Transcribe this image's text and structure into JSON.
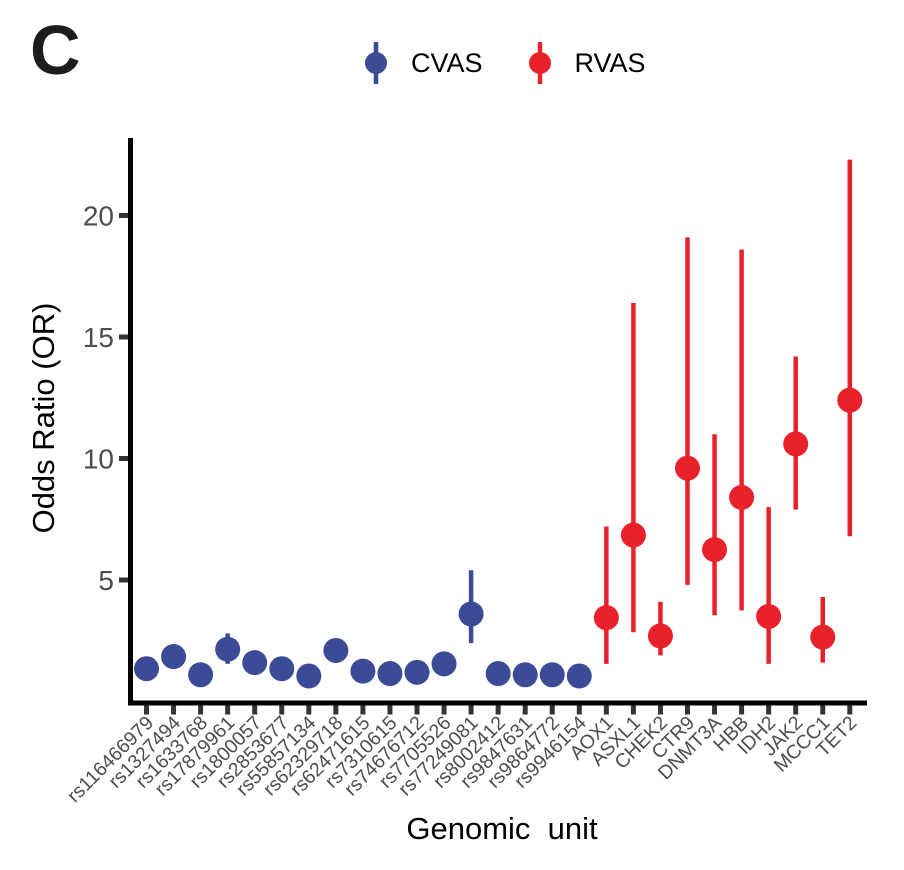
{
  "panel": {
    "label": "C"
  },
  "legend": {
    "items": [
      {
        "label": "CVAS",
        "color": "#3B4B96"
      },
      {
        "label": "RVAS",
        "color": "#E8212B"
      }
    ]
  },
  "chart_data": {
    "type": "scatter",
    "subtype": "pointrange",
    "title": "",
    "xlabel": "Genomic  unit",
    "ylabel": "Odds Ratio (OR)",
    "ylim": [
      0,
      23.3
    ],
    "yticks": [
      5,
      10,
      15,
      20
    ],
    "grid": false,
    "legend_position": "top-center",
    "axis_color": "#000000",
    "tick_color": "#333333",
    "tick_label_color": "#4d4d4d",
    "categories": [
      "rs116466979",
      "rs1327494",
      "rs1633768",
      "rs17879961",
      "rs1800057",
      "rs2853677",
      "rs55857134",
      "rs62329718",
      "rs62471615",
      "rs7310615",
      "rs74676712",
      "rs7705526",
      "rs77249081",
      "rs8002412",
      "rs9847631",
      "rs9864772",
      "rs9946154",
      "AOX1",
      "ASXL1",
      "CHEK2",
      "CTR9",
      "DNMT3A",
      "HBB",
      "IDH2",
      "JAK2",
      "MCCC1",
      "TET2"
    ],
    "series": [
      {
        "name": "CVAS",
        "color": "#3B4B96",
        "points": [
          {
            "category": "rs116466979",
            "or": 1.35,
            "low": null,
            "high": null
          },
          {
            "category": "rs1327494",
            "or": 1.85,
            "low": null,
            "high": null
          },
          {
            "category": "rs1633768",
            "or": 1.1,
            "low": null,
            "high": null
          },
          {
            "category": "rs17879961",
            "or": 2.15,
            "low": 1.55,
            "high": 2.8
          },
          {
            "category": "rs1800057",
            "or": 1.6,
            "low": null,
            "high": null
          },
          {
            "category": "rs2853677",
            "or": 1.35,
            "low": null,
            "high": null
          },
          {
            "category": "rs55857134",
            "or": 1.05,
            "low": null,
            "high": null
          },
          {
            "category": "rs62329718",
            "or": 2.1,
            "low": null,
            "high": null
          },
          {
            "category": "rs62471615",
            "or": 1.25,
            "low": null,
            "high": null
          },
          {
            "category": "rs7310615",
            "or": 1.15,
            "low": null,
            "high": null
          },
          {
            "category": "rs74676712",
            "or": 1.2,
            "low": null,
            "high": null
          },
          {
            "category": "rs7705526",
            "or": 1.55,
            "low": null,
            "high": null
          },
          {
            "category": "rs77249081",
            "or": 3.6,
            "low": 2.4,
            "high": 5.4
          },
          {
            "category": "rs8002412",
            "or": 1.15,
            "low": null,
            "high": null
          },
          {
            "category": "rs9847631",
            "or": 1.1,
            "low": null,
            "high": null
          },
          {
            "category": "rs9864772",
            "or": 1.1,
            "low": null,
            "high": null
          },
          {
            "category": "rs9946154",
            "or": 1.05,
            "low": null,
            "high": null
          }
        ]
      },
      {
        "name": "RVAS",
        "color": "#E8212B",
        "points": [
          {
            "category": "AOX1",
            "or": 3.45,
            "low": 1.55,
            "high": 7.2
          },
          {
            "category": "ASXL1",
            "or": 6.85,
            "low": 2.85,
            "high": 16.4
          },
          {
            "category": "CHEK2",
            "or": 2.7,
            "low": 1.9,
            "high": 4.1
          },
          {
            "category": "CTR9",
            "or": 9.6,
            "low": 4.8,
            "high": 19.1
          },
          {
            "category": "DNMT3A",
            "or": 6.25,
            "low": 3.55,
            "high": 11.0
          },
          {
            "category": "HBB",
            "or": 8.4,
            "low": 3.75,
            "high": 18.6
          },
          {
            "category": "IDH2",
            "or": 3.5,
            "low": 1.55,
            "high": 8.0
          },
          {
            "category": "JAK2",
            "or": 10.6,
            "low": 7.9,
            "high": 14.2
          },
          {
            "category": "MCCC1",
            "or": 2.65,
            "low": 1.6,
            "high": 4.3
          },
          {
            "category": "TET2",
            "or": 12.4,
            "low": 6.8,
            "high": 22.3
          }
        ]
      }
    ]
  }
}
